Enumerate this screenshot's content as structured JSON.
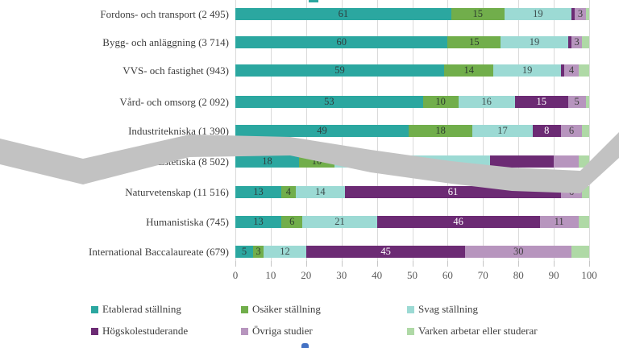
{
  "chart_data": {
    "type": "bar",
    "stacked": true,
    "orientation": "horizontal",
    "title": "",
    "xlabel": "",
    "ylabel": "",
    "xlim": [
      0,
      100
    ],
    "x_ticks": [
      0,
      10,
      20,
      30,
      40,
      50,
      60,
      70,
      80,
      90,
      100
    ],
    "grid": true,
    "legend_position": "bottom",
    "categories": [
      "Fordons- och transport  (2 495)",
      "Bygg- och anläggning (3 714)",
      "VVS- och fastighet (943)",
      "Vård- och omsorg (2 092)",
      "Industritekniska (1 390)",
      "Estetiska (8 502)",
      "Naturvetenskap (11 516)",
      "Humanistiska (745)",
      "International Baccalaureate (679)"
    ],
    "series": [
      {
        "name": "Etablerad ställning",
        "color": "#2BA7A0",
        "value_text_color": "#2e3e3e",
        "values": [
          61,
          60,
          59,
          53,
          49,
          18,
          13,
          13,
          5
        ],
        "shown_labels": [
          "61",
          "60",
          "59",
          "53",
          "49",
          "18",
          "13",
          "13",
          "5"
        ]
      },
      {
        "name": "Osäker ställning",
        "color": "#71AE4B",
        "value_text_color": "#2e3e2e",
        "values": [
          15,
          15,
          14,
          10,
          18,
          10,
          4,
          6,
          3
        ],
        "shown_labels": [
          "15",
          "15",
          "14",
          "10",
          "18",
          "10",
          "4",
          "6",
          "3"
        ]
      },
      {
        "name": "Svag ställning",
        "color": "#9CDAD4",
        "value_text_color": "#3d4d4d",
        "values": [
          19,
          19,
          19,
          16,
          17,
          44,
          14,
          21,
          12
        ],
        "shown_labels": [
          "19",
          "19",
          "19",
          "16",
          "17",
          "",
          "14",
          "21",
          "12"
        ]
      },
      {
        "name": "Högskolestuderande",
        "color": "#6C2B74",
        "value_text_color": "#ffffff",
        "values": [
          1,
          1,
          1,
          15,
          8,
          18,
          61,
          46,
          45
        ],
        "shown_labels": [
          "",
          "",
          "",
          "15",
          "8",
          "",
          "61",
          "46",
          "45"
        ]
      },
      {
        "name": "Övriga studier",
        "color": "#B795BE",
        "value_text_color": "#3d3d3d",
        "values": [
          3,
          3,
          4,
          5,
          6,
          7,
          6,
          11,
          30
        ],
        "shown_labels": [
          "3",
          "3",
          "4",
          "5",
          "6",
          "",
          "6",
          "11",
          "30"
        ]
      },
      {
        "name": "Varken arbetar eller studerar",
        "color": "#AFD9A6",
        "value_text_color": "#3d4d3d",
        "values": [
          1,
          2,
          3,
          1,
          2,
          3,
          2,
          3,
          5
        ],
        "shown_labels": [
          "",
          "",
          "",
          "",
          "",
          "",
          "",
          "",
          ""
        ]
      }
    ]
  },
  "overlay": {
    "band_color": "#c2c2c2"
  },
  "edge_fragments": {
    "top_color": "#2BA7A0",
    "bottom_color": "#4472C4"
  }
}
